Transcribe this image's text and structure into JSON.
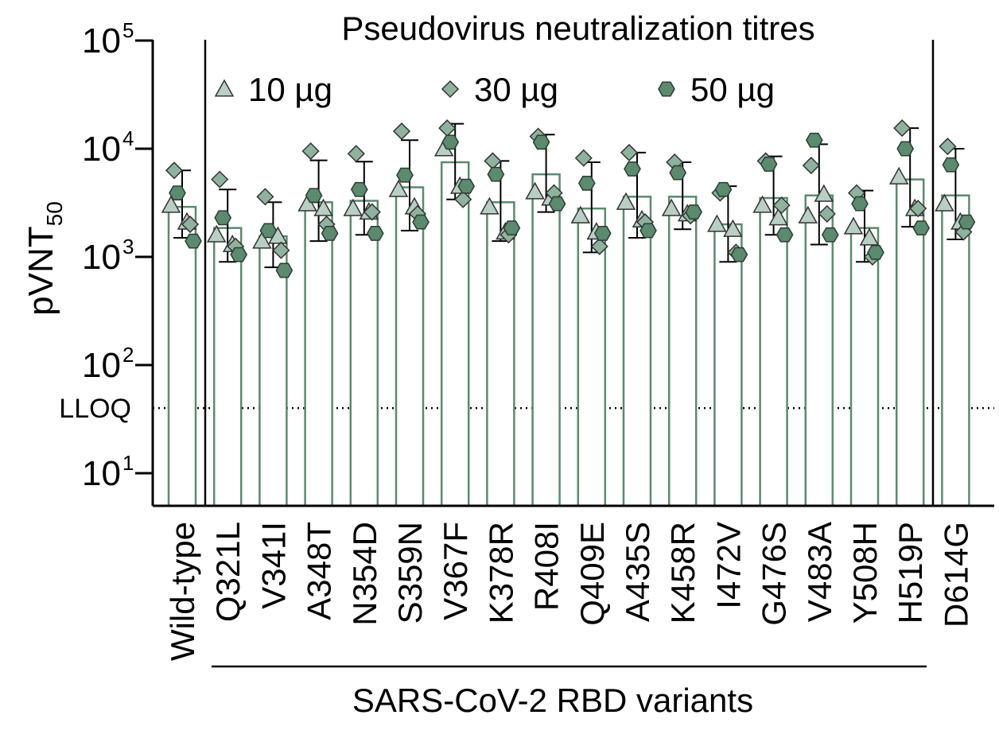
{
  "chart_data": {
    "type": "bar",
    "title": "Pseudovirus neutralization titres",
    "ylabel": {
      "base": "pVNT",
      "subscript": "50"
    },
    "yscale": "log",
    "ylim": [
      5,
      100000
    ],
    "yticks": [
      {
        "value": 10,
        "base": "10",
        "exp": "1"
      },
      {
        "value": 100,
        "base": "10",
        "exp": "2"
      },
      {
        "value": 1000,
        "base": "10",
        "exp": "3"
      },
      {
        "value": 10000,
        "base": "10",
        "exp": "4"
      },
      {
        "value": 100000,
        "base": "10",
        "exp": "5"
      }
    ],
    "lloq": {
      "label": "LLOQ",
      "value": 40
    },
    "group_label": "SARS-CoV-2 RBD variants",
    "legend": {
      "placement": "top",
      "entries": [
        {
          "label": "10 µg",
          "marker": "triangle",
          "color": "#b9cfc3"
        },
        {
          "label": "30 µg",
          "marker": "diamond",
          "color": "#8fb29e"
        },
        {
          "label": "50 µg",
          "marker": "hexagon",
          "color": "#5b8a6e"
        }
      ]
    },
    "colors": {
      "bar_edge": "#5b8a6e",
      "bar_fill": "#ffffff"
    },
    "categories": [
      "Wild-type",
      "Q321L",
      "V341I",
      "A348T",
      "N354D",
      "S359N",
      "V367F",
      "K378R",
      "R408I",
      "Q409E",
      "A435S",
      "K458R",
      "I472V",
      "G476S",
      "V483A",
      "Y508H",
      "H519P",
      "D614G"
    ],
    "values": [
      2900,
      1850,
      1550,
      3200,
      3300,
      4400,
      7500,
      3200,
      5800,
      2800,
      3600,
      3600,
      2000,
      3500,
      3700,
      1850,
      5200,
      3700
    ],
    "error_low": [
      1500,
      900,
      800,
      1400,
      1600,
      1750,
      3400,
      1400,
      2600,
      1100,
      1500,
      1800,
      900,
      1600,
      1300,
      900,
      1900,
      1450
    ],
    "error_high": [
      6300,
      4200,
      3200,
      7800,
      7600,
      12000,
      17000,
      7700,
      13500,
      7500,
      9200,
      7500,
      4500,
      8500,
      11000,
      4100,
      15500,
      10000
    ],
    "series": [
      {
        "name": "10 µg",
        "points": [
          [
            3000,
            2100
          ],
          [
            1600,
            1300
          ],
          [
            1400,
            1550
          ],
          [
            3100,
            2800
          ],
          [
            2800,
            2600
          ],
          [
            4200,
            2900
          ],
          [
            10000,
            4500
          ],
          [
            2900,
            1700
          ],
          [
            4000,
            3500
          ],
          [
            2400,
            1700
          ],
          [
            3200,
            2200
          ],
          [
            2800,
            2500
          ],
          [
            2000,
            1800
          ],
          [
            3000,
            2300
          ],
          [
            2400,
            3800
          ],
          [
            1900,
            1500
          ],
          [
            5500,
            2800
          ],
          [
            3100,
            2100
          ]
        ]
      },
      {
        "name": "30 µg",
        "points": [
          [
            6300,
            2000
          ],
          [
            5200,
            1250
          ],
          [
            3600,
            1150
          ],
          [
            9500,
            2000
          ],
          [
            9000,
            2600
          ],
          [
            14500,
            2500
          ],
          [
            15500,
            3400
          ],
          [
            7700,
            1600
          ],
          [
            13000,
            3900
          ],
          [
            8200,
            1250
          ],
          [
            9200,
            2100
          ],
          [
            7500,
            2400
          ],
          [
            3900,
            1100
          ],
          [
            7700,
            3000
          ],
          [
            7000,
            2500
          ],
          [
            3900,
            1000
          ],
          [
            15500,
            2800
          ],
          [
            10500,
            1700
          ]
        ]
      },
      {
        "name": "50 µg",
        "points": [
          [
            3900,
            1400
          ],
          [
            2300,
            1050
          ],
          [
            1750,
            750
          ],
          [
            3700,
            1650
          ],
          [
            4200,
            1650
          ],
          [
            5700,
            2100
          ],
          [
            11500,
            4500
          ],
          [
            5800,
            1850
          ],
          [
            11500,
            3100
          ],
          [
            4800,
            1650
          ],
          [
            6500,
            1750
          ],
          [
            6000,
            2600
          ],
          [
            4200,
            1050
          ],
          [
            7200,
            1600
          ],
          [
            12000,
            1600
          ],
          [
            3100,
            1100
          ],
          [
            10000,
            1850
          ],
          [
            7100,
            2100
          ]
        ]
      }
    ]
  }
}
